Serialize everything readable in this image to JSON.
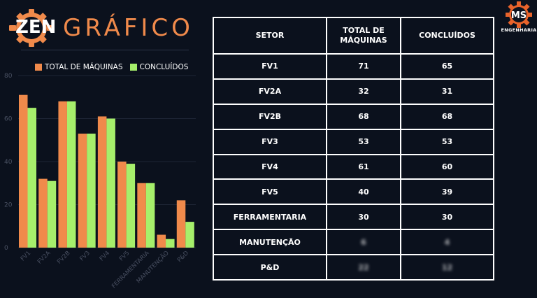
{
  "branding": {
    "logo_zen": "ZEN",
    "logo_grafico": "GRÁFICO",
    "corner_logo": "MS",
    "corner_logo_sub": "ENGENHARIA",
    "accent": "#f08a4b",
    "accent2": "#a6ef6b"
  },
  "chart_data": {
    "type": "bar",
    "categories": [
      "FV1",
      "FV2A",
      "FV2B",
      "FV3",
      "FV4",
      "FV5",
      "FERRAMENTARIA",
      "MANUTENÇÃO",
      "P&D"
    ],
    "series": [
      {
        "name": "TOTAL DE MÁQUINAS",
        "color": "#f08a4b",
        "values": [
          71,
          32,
          68,
          53,
          61,
          40,
          30,
          6,
          22
        ]
      },
      {
        "name": "CONCLUÍDOS",
        "color": "#a6ef6b",
        "values": [
          65,
          31,
          68,
          53,
          60,
          39,
          30,
          4,
          12
        ]
      }
    ],
    "title": "",
    "xlabel": "",
    "ylabel": "",
    "ylim": [
      0,
      80
    ],
    "yticks": [
      0,
      20,
      40,
      60,
      80
    ],
    "grid": true,
    "legend": "top"
  },
  "table": {
    "headers": [
      "SETOR",
      "TOTAL DE MÁQUINAS",
      "CONCLUÍDOS"
    ],
    "rows": [
      {
        "setor": "FV1",
        "total": "71",
        "concluidos": "65"
      },
      {
        "setor": "FV2A",
        "total": "32",
        "concluidos": "31"
      },
      {
        "setor": "FV2B",
        "total": "68",
        "concluidos": "68"
      },
      {
        "setor": "FV3",
        "total": "53",
        "concluidos": "53"
      },
      {
        "setor": "FV4",
        "total": "61",
        "concluidos": "60"
      },
      {
        "setor": "FV5",
        "total": "40",
        "concluidos": "39"
      },
      {
        "setor": "FERRAMENTARIA",
        "total": "30",
        "concluidos": "30"
      },
      {
        "setor": "MANUTENÇÃO",
        "total": "6",
        "concluidos": "4"
      },
      {
        "setor": "P&D",
        "total": "22",
        "concluidos": "12"
      }
    ]
  }
}
